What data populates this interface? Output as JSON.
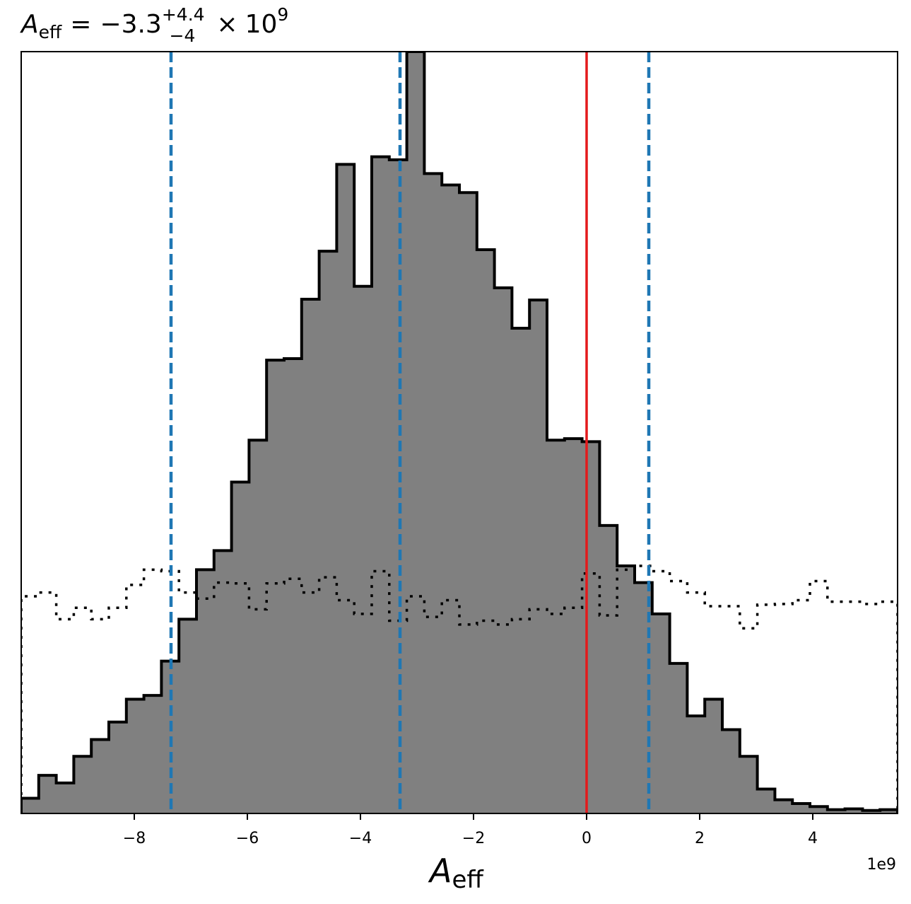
{
  "chart_data": {
    "type": "histogram",
    "title": {
      "symbol": "A",
      "subscript": "eff",
      "equals": "=",
      "median": "−3.3",
      "upper": "+4.4",
      "lower": "−4",
      "times": "×",
      "base": "10",
      "exponent": "9"
    },
    "xlabel": {
      "symbol": "A",
      "subscript": "eff"
    },
    "ylabel": "",
    "x_offset_label": "1e9",
    "xlim": [
      -10,
      5.5
    ],
    "ylim": [
      0,
      1.0
    ],
    "y_ticks_visible": false,
    "x_ticks": [
      {
        "value": -8,
        "label": "−8"
      },
      {
        "value": -6,
        "label": "−6"
      },
      {
        "value": -4,
        "label": "−4"
      },
      {
        "value": -2,
        "label": "−2"
      },
      {
        "value": 0,
        "label": "0"
      },
      {
        "value": 2,
        "label": "2"
      },
      {
        "value": 4,
        "label": "4"
      }
    ],
    "posterior": {
      "style": "filled-step",
      "fill_color": "#808080",
      "edge_color": "#000000",
      "bin_edges": [
        -10,
        -9.69,
        -9.38,
        -9.07,
        -8.76,
        -8.45,
        -8.14,
        -7.83,
        -7.52,
        -7.21,
        -6.9,
        -6.59,
        -6.28,
        -5.97,
        -5.66,
        -5.35,
        -5.04,
        -4.73,
        -4.42,
        -4.11,
        -3.8,
        -3.49,
        -3.18,
        -2.87,
        -2.56,
        -2.25,
        -1.94,
        -1.63,
        -1.32,
        -1.01,
        -0.7,
        -0.39,
        -0.08,
        0.23,
        0.54,
        0.85,
        1.16,
        1.47,
        1.78,
        2.09,
        2.4,
        2.71,
        3.02,
        3.33,
        3.64,
        3.95,
        4.26,
        4.57,
        4.88,
        5.19,
        5.5
      ],
      "heights": [
        0.02,
        0.05,
        0.04,
        0.075,
        0.097,
        0.12,
        0.15,
        0.155,
        0.2,
        0.255,
        0.32,
        0.345,
        0.435,
        0.49,
        0.595,
        0.597,
        0.675,
        0.738,
        0.852,
        0.692,
        0.862,
        0.858,
        1.0,
        0.84,
        0.825,
        0.815,
        0.74,
        0.69,
        0.637,
        0.674,
        0.49,
        0.492,
        0.488,
        0.378,
        0.325,
        0.303,
        0.262,
        0.197,
        0.128,
        0.15,
        0.11,
        0.075,
        0.032,
        0.018,
        0.013,
        0.009,
        0.005,
        0.006,
        0.004,
        0.005
      ]
    },
    "prior": {
      "style": "dotted-step",
      "color": "#000000",
      "bin_edges": [
        -10,
        -9.69,
        -9.38,
        -9.07,
        -8.76,
        -8.45,
        -8.14,
        -7.83,
        -7.52,
        -7.21,
        -6.9,
        -6.59,
        -6.28,
        -5.97,
        -5.66,
        -5.35,
        -5.04,
        -4.73,
        -4.42,
        -4.11,
        -3.8,
        -3.49,
        -3.18,
        -2.87,
        -2.56,
        -2.25,
        -1.94,
        -1.63,
        -1.32,
        -1.01,
        -0.7,
        -0.39,
        -0.08,
        0.23,
        0.54,
        0.85,
        1.16,
        1.47,
        1.78,
        2.09,
        2.4,
        2.71,
        3.02,
        3.33,
        3.64,
        3.95,
        4.26,
        4.57,
        4.88,
        5.19,
        5.5
      ],
      "heights": [
        0.285,
        0.29,
        0.255,
        0.27,
        0.255,
        0.27,
        0.3,
        0.32,
        0.318,
        0.29,
        0.282,
        0.303,
        0.302,
        0.268,
        0.302,
        0.308,
        0.29,
        0.31,
        0.28,
        0.262,
        0.318,
        0.253,
        0.285,
        0.258,
        0.28,
        0.248,
        0.253,
        0.248,
        0.255,
        0.268,
        0.262,
        0.27,
        0.315,
        0.26,
        0.32,
        0.325,
        0.318,
        0.305,
        0.29,
        0.272,
        0.272,
        0.243,
        0.274,
        0.275,
        0.28,
        0.305,
        0.278,
        0.278,
        0.275,
        0.278
      ]
    },
    "vertical_lines": [
      {
        "x": -7.35,
        "color": "#1f77b4",
        "style": "dashed",
        "meaning": "lower-credible-bound"
      },
      {
        "x": -3.3,
        "color": "#1f77b4",
        "style": "dashed",
        "meaning": "median"
      },
      {
        "x": 1.1,
        "color": "#1f77b4",
        "style": "dashed",
        "meaning": "upper-credible-bound"
      },
      {
        "x": 0,
        "color": "#e41a1c",
        "style": "solid",
        "meaning": "reference-value"
      }
    ],
    "grid": false,
    "legend": "none"
  }
}
